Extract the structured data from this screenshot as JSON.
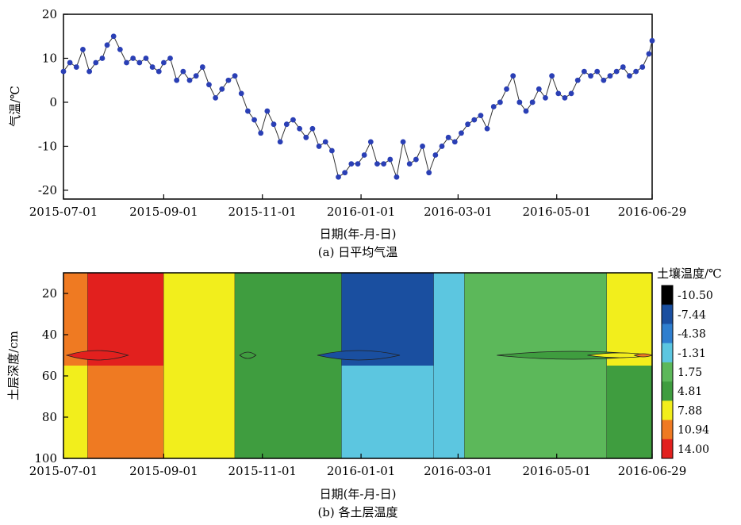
{
  "chart_data": [
    {
      "type": "scatter",
      "title": "",
      "caption": "(a) 日平均气温",
      "xlabel": "日期(年-月-日)",
      "ylabel": "气温/℃",
      "ylim": [
        -22,
        20
      ],
      "xlim": [
        "2015-07-01",
        "2016-06-29"
      ],
      "x_ticks": [
        "2015-07-01",
        "2015-09-01",
        "2015-11-01",
        "2016-01-01",
        "2016-03-01",
        "2016-05-01",
        "2016-06-29"
      ],
      "y_ticks": [
        20,
        10,
        0,
        -10,
        -20
      ],
      "marker_color": "#2a3fb5",
      "line_color": "#333333",
      "series": [
        {
          "x": [
            "2015-07-01",
            "2015-07-05",
            "2015-07-09",
            "2015-07-13",
            "2015-07-17",
            "2015-07-21",
            "2015-07-25",
            "2015-07-28",
            "2015-08-01",
            "2015-08-05",
            "2015-08-09",
            "2015-08-13",
            "2015-08-17",
            "2015-08-21",
            "2015-08-25",
            "2015-08-29",
            "2015-09-01",
            "2015-09-05",
            "2015-09-09",
            "2015-09-13",
            "2015-09-17",
            "2015-09-21",
            "2015-09-25",
            "2015-09-29",
            "2015-10-03",
            "2015-10-07",
            "2015-10-11",
            "2015-10-15",
            "2015-10-19",
            "2015-10-23",
            "2015-10-27",
            "2015-10-31",
            "2015-11-04",
            "2015-11-08",
            "2015-11-12",
            "2015-11-16",
            "2015-11-20",
            "2015-11-24",
            "2015-11-28",
            "2015-12-02",
            "2015-12-06",
            "2015-12-10",
            "2015-12-14",
            "2015-12-18",
            "2015-12-22",
            "2015-12-26",
            "2015-12-30",
            "2016-01-03",
            "2016-01-07",
            "2016-01-11",
            "2016-01-15",
            "2016-01-19",
            "2016-01-23",
            "2016-01-27",
            "2016-01-31",
            "2016-02-04",
            "2016-02-08",
            "2016-02-12",
            "2016-02-16",
            "2016-02-20",
            "2016-02-24",
            "2016-02-28",
            "2016-03-03",
            "2016-03-07",
            "2016-03-11",
            "2016-03-15",
            "2016-03-19",
            "2016-03-23",
            "2016-03-27",
            "2016-03-31",
            "2016-04-04",
            "2016-04-08",
            "2016-04-12",
            "2016-04-16",
            "2016-04-20",
            "2016-04-24",
            "2016-04-28",
            "2016-05-02",
            "2016-05-06",
            "2016-05-10",
            "2016-05-14",
            "2016-05-18",
            "2016-05-22",
            "2016-05-26",
            "2016-05-30",
            "2016-06-03",
            "2016-06-07",
            "2016-06-11",
            "2016-06-15",
            "2016-06-19",
            "2016-06-23",
            "2016-06-27",
            "2016-06-29"
          ],
          "values": [
            7,
            9,
            8,
            12,
            7,
            9,
            10,
            13,
            15,
            12,
            9,
            10,
            9,
            10,
            8,
            7,
            9,
            10,
            5,
            7,
            5,
            6,
            8,
            4,
            1,
            3,
            5,
            6,
            2,
            -2,
            -4,
            -7,
            -2,
            -5,
            -9,
            -5,
            -4,
            -6,
            -8,
            -6,
            -10,
            -9,
            -11,
            -17,
            -16,
            -14,
            -14,
            -12,
            -9,
            -14,
            -14,
            -13,
            -17,
            -9,
            -14,
            -13,
            -10,
            -16,
            -12,
            -10,
            -8,
            -9,
            -7,
            -5,
            -4,
            -3,
            -6,
            -1,
            0,
            3,
            6,
            0,
            -2,
            0,
            3,
            1,
            6,
            2,
            1,
            2,
            5,
            7,
            6,
            7,
            5,
            6,
            7,
            8,
            6,
            7,
            8,
            11,
            14
          ]
        }
      ]
    },
    {
      "type": "heatmap",
      "title": "",
      "caption": "(b) 各土层温度",
      "xlabel": "日期(年-月-日)",
      "ylabel": "土层深度/cm",
      "ylim": [
        100,
        10
      ],
      "x_ticks": [
        "2015-07-01",
        "2015-09-01",
        "2015-11-01",
        "2016-01-01",
        "2016-03-01",
        "2016-05-01",
        "2016-06-29"
      ],
      "y_ticks": [
        20,
        40,
        60,
        80,
        100
      ],
      "colorbar_title": "土壤温度/℃",
      "levels": [
        "-10.50",
        "-7.44",
        "-4.38",
        "-1.31",
        "1.75",
        "4.81",
        "7.88",
        "10.94",
        "14.00"
      ],
      "level_colors": [
        "#000000",
        "#1a4fa0",
        "#2f7fcf",
        "#5cc6e0",
        "#5cb85a",
        "#3f9d3f",
        "#f2ee1c",
        "#ef7a22",
        "#e2201e"
      ],
      "bands": [
        {
          "from": "2015-07-01",
          "to": "2015-07-16",
          "top_level": "10.94",
          "bottom_level": "7.88"
        },
        {
          "from": "2015-07-16",
          "to": "2015-09-01",
          "top_level": "14.00",
          "bottom_level": "10.94"
        },
        {
          "from": "2015-09-01",
          "to": "2015-10-15",
          "top_level": "7.88",
          "bottom_level": "7.88"
        },
        {
          "from": "2015-10-15",
          "to": "2015-12-20",
          "top_level": "4.81",
          "bottom_level": "4.81"
        },
        {
          "from": "2015-12-20",
          "to": "2016-02-15",
          "top_level": "-7.44",
          "bottom_level": "-1.31"
        },
        {
          "from": "2016-02-15",
          "to": "2016-03-05",
          "top_level": "-1.31",
          "bottom_level": "-1.31"
        },
        {
          "from": "2016-03-05",
          "to": "2016-06-01",
          "top_level": "1.75",
          "bottom_level": "1.75"
        },
        {
          "from": "2016-06-01",
          "to": "2016-06-29",
          "top_level": "7.88",
          "bottom_level": "4.81"
        }
      ]
    }
  ]
}
